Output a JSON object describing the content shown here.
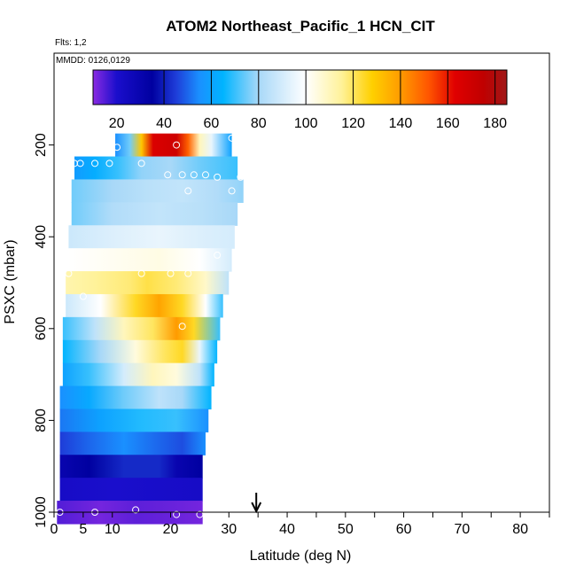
{
  "chart_data": {
    "type": "heatmap",
    "title": "ATOM2 Northeast_Pacific_1 HCN_CIT",
    "flights_note": "Flts: 1,2",
    "mmdd_note": "MMDD: 0126,0129",
    "xlabel": "Latitude (deg N)",
    "ylabel": "PSXC (mbar)",
    "xlim": [
      0,
      85
    ],
    "ylim": [
      1000,
      0
    ],
    "x_ticks": [
      0,
      5,
      10,
      20,
      30,
      40,
      50,
      60,
      70,
      80
    ],
    "x_minor_ticks": [
      35,
      45,
      55,
      65,
      75,
      85
    ],
    "y_ticks": [
      200,
      400,
      600,
      800,
      1000
    ],
    "arrow_latitude": 34.7,
    "colorbar": {
      "min": 10,
      "max": 185,
      "ticks": [
        20,
        40,
        60,
        80,
        100,
        120,
        140,
        160,
        180
      ],
      "dividers": [
        40,
        60,
        80,
        100,
        120,
        140,
        160,
        180
      ],
      "stops": [
        [
          10,
          "#8a2be2"
        ],
        [
          20,
          "#1a0ecc"
        ],
        [
          35,
          "#0000a0"
        ],
        [
          45,
          "#1e3cd8"
        ],
        [
          55,
          "#1a90ff"
        ],
        [
          65,
          "#00b4ff"
        ],
        [
          80,
          "#a8d8f8"
        ],
        [
          100,
          "#ffffff"
        ],
        [
          115,
          "#fff29a"
        ],
        [
          128,
          "#ffd000"
        ],
        [
          140,
          "#ff9b00"
        ],
        [
          152,
          "#ff5500"
        ],
        [
          163,
          "#e00000"
        ],
        [
          175,
          "#c00000"
        ],
        [
          185,
          "#a01818"
        ]
      ]
    },
    "bins": [
      {
        "p": 200,
        "x0": 10.5,
        "x1": 30.5,
        "pts": [
          [
            10.5,
            55
          ],
          [
            13,
            75
          ],
          [
            15,
            130
          ],
          [
            17,
            165
          ],
          [
            21,
            170
          ],
          [
            23,
            150
          ],
          [
            25,
            110
          ],
          [
            27,
            95
          ],
          [
            30.5,
            60
          ]
        ]
      },
      {
        "p": 250,
        "x0": 3.5,
        "x1": 31.5,
        "pts": [
          [
            3.5,
            58
          ],
          [
            7,
            63
          ],
          [
            11,
            70
          ],
          [
            15,
            78
          ],
          [
            20,
            80
          ],
          [
            25,
            75
          ],
          [
            31.5,
            70
          ]
        ]
      },
      {
        "p": 300,
        "x0": 3,
        "x1": 32.5,
        "pts": [
          [
            3,
            75
          ],
          [
            10,
            80
          ],
          [
            16,
            84
          ],
          [
            22,
            86
          ],
          [
            28,
            82
          ],
          [
            32.5,
            78
          ]
        ]
      },
      {
        "p": 350,
        "x0": 3,
        "x1": 31.5,
        "pts": [
          [
            3,
            75
          ],
          [
            10,
            82
          ],
          [
            18,
            86
          ],
          [
            25,
            84
          ],
          [
            31.5,
            80
          ]
        ]
      },
      {
        "p": 400,
        "x0": 2.5,
        "x1": 31,
        "pts": [
          [
            2.5,
            88
          ],
          [
            10,
            92
          ],
          [
            18,
            95
          ],
          [
            25,
            92
          ],
          [
            31,
            90
          ]
        ]
      },
      {
        "p": 450,
        "x0": 2.5,
        "x1": 30.5,
        "pts": [
          [
            2.5,
            100
          ],
          [
            10,
            102
          ],
          [
            18,
            104
          ],
          [
            25,
            100
          ],
          [
            30.5,
            90
          ]
        ]
      },
      {
        "p": 500,
        "x0": 2,
        "x1": 30,
        "pts": [
          [
            2,
            112
          ],
          [
            7,
            115
          ],
          [
            13,
            118
          ],
          [
            16,
            122
          ],
          [
            21,
            118
          ],
          [
            26,
            108
          ],
          [
            30,
            85
          ]
        ]
      },
      {
        "p": 550,
        "x0": 2,
        "x1": 29,
        "pts": [
          [
            2,
            88
          ],
          [
            8,
            100
          ],
          [
            14,
            125
          ],
          [
            18,
            138
          ],
          [
            22,
            125
          ],
          [
            26,
            100
          ],
          [
            29,
            70
          ]
        ]
      },
      {
        "p": 600,
        "x0": 1.5,
        "x1": 28.5,
        "pts": [
          [
            1.5,
            70
          ],
          [
            7,
            85
          ],
          [
            12,
            110
          ],
          [
            17,
            120
          ],
          [
            21,
            140
          ],
          [
            24,
            125
          ],
          [
            28.5,
            70
          ]
        ]
      },
      {
        "p": 650,
        "x0": 1.5,
        "x1": 28,
        "pts": [
          [
            1.5,
            65
          ],
          [
            8,
            80
          ],
          [
            14,
            105
          ],
          [
            19,
            120
          ],
          [
            22,
            125
          ],
          [
            25,
            95
          ],
          [
            28,
            65
          ]
        ]
      },
      {
        "p": 700,
        "x0": 1.5,
        "x1": 27.5,
        "pts": [
          [
            1.5,
            60
          ],
          [
            6,
            70
          ],
          [
            12,
            90
          ],
          [
            17,
            110
          ],
          [
            21,
            105
          ],
          [
            25,
            85
          ],
          [
            27.5,
            65
          ]
        ]
      },
      {
        "p": 750,
        "x0": 1,
        "x1": 27,
        "pts": [
          [
            1,
            55
          ],
          [
            6,
            62
          ],
          [
            12,
            75
          ],
          [
            18,
            85
          ],
          [
            22,
            80
          ],
          [
            27,
            65
          ]
        ]
      },
      {
        "p": 800,
        "x0": 1,
        "x1": 26.5,
        "pts": [
          [
            1,
            52
          ],
          [
            8,
            60
          ],
          [
            15,
            68
          ],
          [
            21,
            70
          ],
          [
            26.5,
            55
          ]
        ]
      },
      {
        "p": 850,
        "x0": 1,
        "x1": 26,
        "pts": [
          [
            1,
            45
          ],
          [
            6,
            50
          ],
          [
            12,
            55
          ],
          [
            18,
            50
          ],
          [
            22,
            47
          ],
          [
            26,
            55
          ]
        ]
      },
      {
        "p": 900,
        "x0": 1,
        "x1": 25.5,
        "pts": [
          [
            1,
            30
          ],
          [
            6,
            35
          ],
          [
            12,
            42
          ],
          [
            18,
            42
          ],
          [
            21,
            30
          ],
          [
            25.5,
            35
          ]
        ]
      },
      {
        "p": 950,
        "x0": 1,
        "x1": 25.5,
        "pts": [
          [
            1,
            22
          ],
          [
            10,
            20
          ],
          [
            18,
            21
          ],
          [
            25.5,
            22
          ]
        ]
      },
      {
        "p": 1000,
        "x0": 0.5,
        "x1": 25.5,
        "pts": [
          [
            0.5,
            15
          ],
          [
            8,
            12
          ],
          [
            14,
            14
          ],
          [
            20,
            13
          ],
          [
            25.5,
            12
          ]
        ]
      }
    ],
    "points": [
      [
        10.8,
        205
      ],
      [
        21,
        200
      ],
      [
        30.5,
        185
      ],
      [
        3.5,
        240
      ],
      [
        4.5,
        240
      ],
      [
        7,
        240
      ],
      [
        9.5,
        240
      ],
      [
        15,
        240
      ],
      [
        19.5,
        265
      ],
      [
        22,
        265
      ],
      [
        24,
        265
      ],
      [
        26,
        265
      ],
      [
        28,
        270
      ],
      [
        32,
        270
      ],
      [
        23,
        300
      ],
      [
        30.5,
        300
      ],
      [
        28,
        440
      ],
      [
        2.5,
        480
      ],
      [
        15,
        480
      ],
      [
        20,
        480
      ],
      [
        23,
        480
      ],
      [
        5,
        530
      ],
      [
        22,
        595
      ],
      [
        7,
        1000
      ],
      [
        14,
        995
      ],
      [
        21,
        1005
      ],
      [
        25,
        1005
      ],
      [
        1,
        1000
      ]
    ]
  }
}
